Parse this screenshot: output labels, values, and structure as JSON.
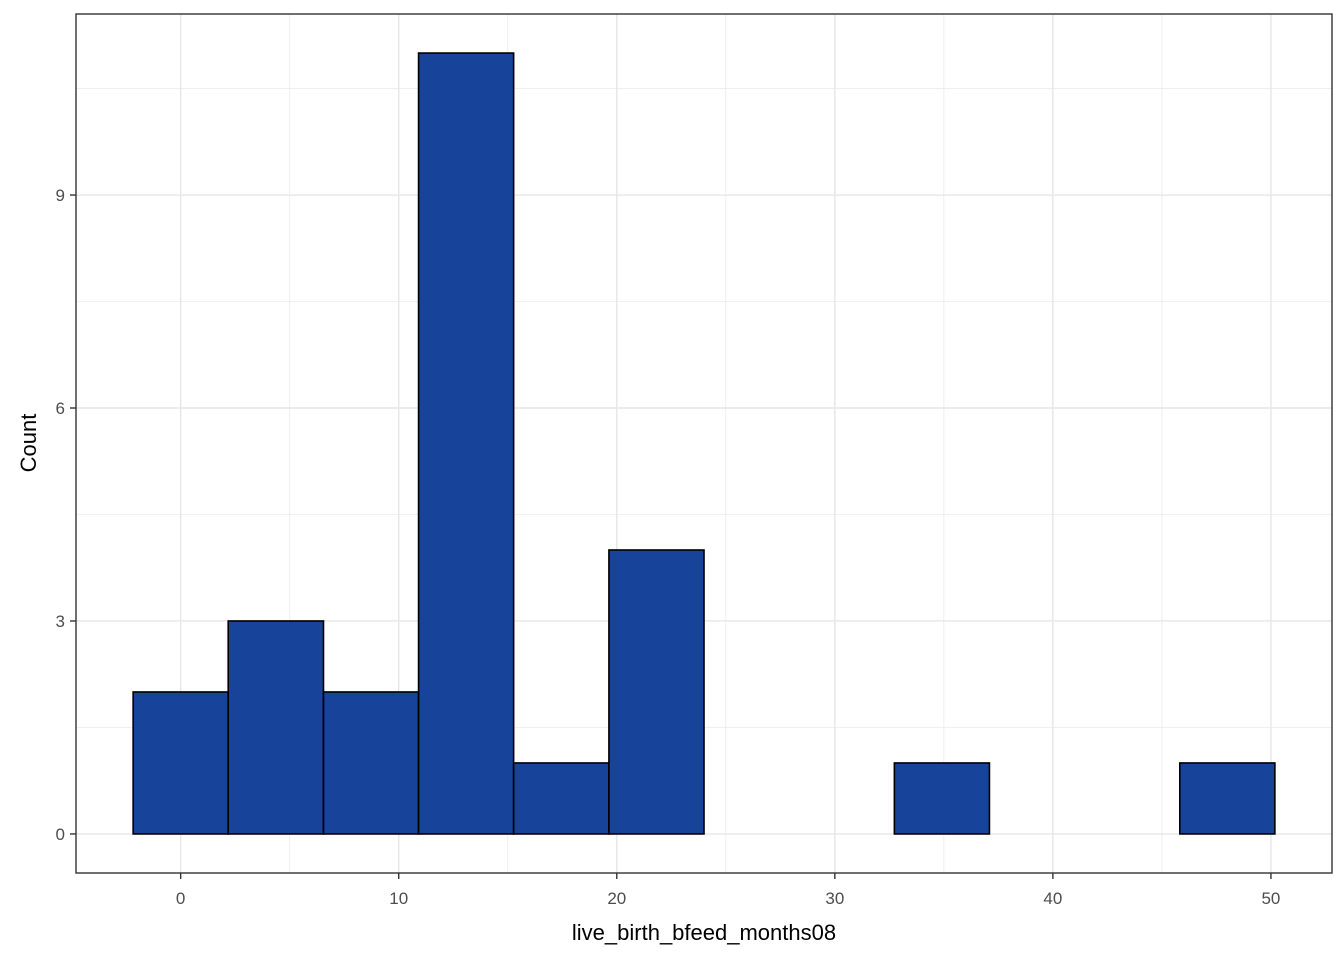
{
  "chart_data": {
    "type": "bar",
    "title": "",
    "xlabel": "live_birth_bfeed_months08",
    "ylabel": "Count",
    "bins": [
      {
        "x0": -2.18,
        "x1": 2.18,
        "count": 2
      },
      {
        "x0": 2.18,
        "x1": 6.55,
        "count": 3
      },
      {
        "x0": 6.55,
        "x1": 10.91,
        "count": 2
      },
      {
        "x0": 10.91,
        "x1": 15.27,
        "count": 11
      },
      {
        "x0": 15.27,
        "x1": 19.64,
        "count": 1
      },
      {
        "x0": 19.64,
        "x1": 24.0,
        "count": 4
      },
      {
        "x0": 24.0,
        "x1": 28.36,
        "count": 0
      },
      {
        "x0": 28.36,
        "x1": 32.73,
        "count": 0
      },
      {
        "x0": 32.73,
        "x1": 37.09,
        "count": 1
      },
      {
        "x0": 37.09,
        "x1": 41.45,
        "count": 0
      },
      {
        "x0": 41.45,
        "x1": 45.82,
        "count": 0
      },
      {
        "x0": 45.82,
        "x1": 50.18,
        "count": 1
      }
    ],
    "xlim": [
      -4.8,
      52.8
    ],
    "ylim": [
      -0.55,
      11.55
    ],
    "x_ticks": [
      0,
      10,
      20,
      30,
      40,
      50
    ],
    "y_ticks": [
      0,
      3,
      6,
      9
    ],
    "grid": true,
    "bar_fill": "#17449a",
    "bar_stroke": "#000000"
  }
}
